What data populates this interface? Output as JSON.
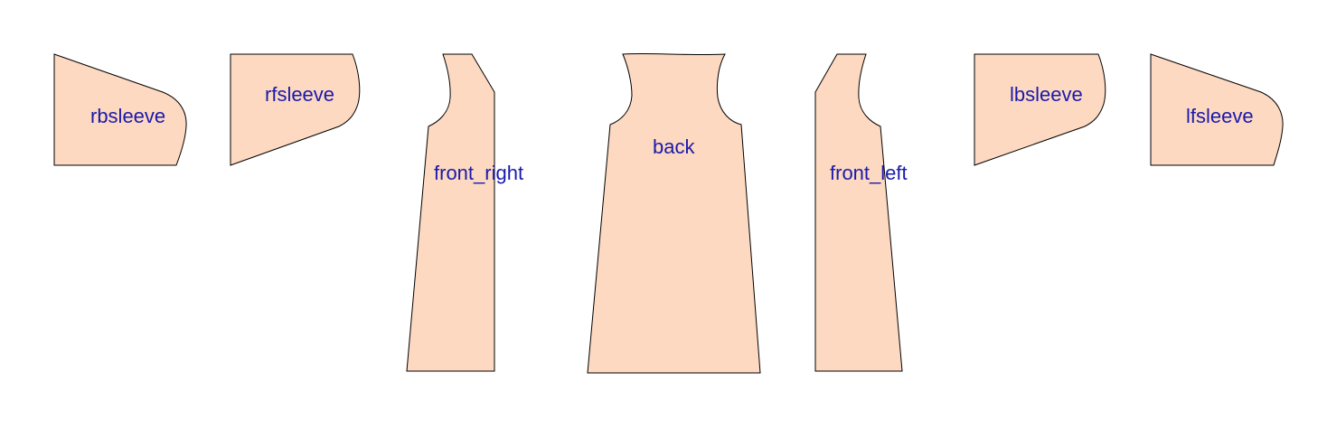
{
  "colors": {
    "piece_fill": "#fdd9c1",
    "piece_stroke": "#000000",
    "label_color": "#1a1aaa",
    "background": "#ffffff"
  },
  "pieces": [
    {
      "id": "rbsleeve",
      "label": "rbsleeve"
    },
    {
      "id": "rfsleeve",
      "label": "rfsleeve"
    },
    {
      "id": "front_right",
      "label": "front_right"
    },
    {
      "id": "back",
      "label": "back"
    },
    {
      "id": "front_left",
      "label": "front_left"
    },
    {
      "id": "lbsleeve",
      "label": "lbsleeve"
    },
    {
      "id": "lfsleeve",
      "label": "lfsleeve"
    }
  ]
}
